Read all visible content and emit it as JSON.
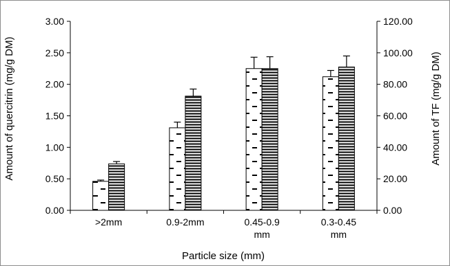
{
  "chart_data": {
    "type": "bar",
    "title": "",
    "xlabel": "Particle size (mm)",
    "ylabel": "Amount of quercitrin (mg/g DM)",
    "y2label": "Amount of TF (mg/g DM)",
    "categories": [
      ">2mm",
      "0.9-2mm",
      "0.45-0.9 mm",
      "0.3-0.45 mm"
    ],
    "category_lines": [
      [
        ">2mm"
      ],
      [
        "0.9-2mm"
      ],
      [
        "0.45-0.9",
        "mm"
      ],
      [
        "0.3-0.45",
        "mm"
      ]
    ],
    "ylim": [
      0,
      3.0
    ],
    "y2lim": [
      0,
      120.0
    ],
    "yticks": [
      "0.00",
      "0.50",
      "1.00",
      "1.50",
      "2.00",
      "2.50",
      "3.00"
    ],
    "y2ticks": [
      "0.00",
      "20.00",
      "40.00",
      "60.00",
      "80.00",
      "100.00",
      "120.00"
    ],
    "grid": false,
    "legend": "none",
    "series": [
      {
        "axis": "left",
        "pattern": "dashes",
        "values": [
          0.46,
          1.31,
          2.25,
          2.12
        ],
        "errors": [
          0.02,
          0.09,
          0.18,
          0.1
        ]
      },
      {
        "axis": "right",
        "pattern": "horizontal-stripes",
        "values": [
          29.5,
          72.5,
          90.0,
          91.0
        ],
        "errors": [
          1.5,
          4.5,
          7.5,
          7.0
        ]
      }
    ]
  },
  "colors": {
    "bar_fill": "#ffffff",
    "stroke": "#000000",
    "frame": "#8c8c8c"
  }
}
